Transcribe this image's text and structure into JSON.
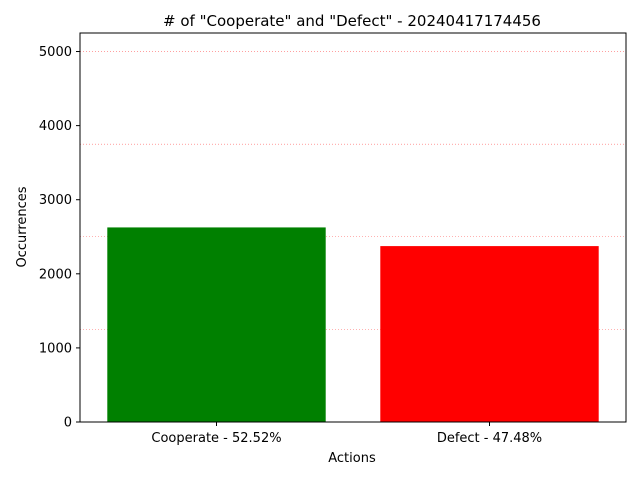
{
  "chart_data": {
    "type": "bar",
    "title": "# of \"Cooperate\" and \"Defect\" - 20240417174456",
    "xlabel": "Actions",
    "ylabel": "Occurrences",
    "categories": [
      "Cooperate - 52.52%",
      "Defect - 47.48%"
    ],
    "values": [
      2626,
      2374
    ],
    "bar_colors": [
      "#008000",
      "#ff0000"
    ],
    "ylim": [
      0,
      5250
    ],
    "yticks": [
      0,
      1000,
      2000,
      3000,
      4000,
      5000
    ],
    "gridlines": [
      1250,
      2500,
      3750,
      5000
    ],
    "grid_color": "#ff0000",
    "grid": true
  }
}
